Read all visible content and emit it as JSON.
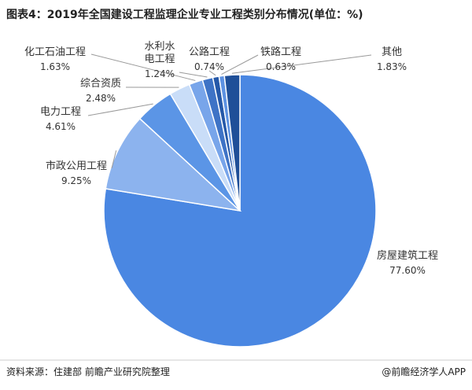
{
  "chart_data": {
    "type": "pie",
    "title": "图表4：2019年全国建设工程监理企业专业工程类别分布情况(单位：%)",
    "categories": [
      "房屋建筑工程",
      "市政公用工程",
      "电力工程",
      "综合资质",
      "化工石油工程",
      "水利水电工程",
      "公路工程",
      "铁路工程",
      "其他"
    ],
    "values": [
      77.6,
      9.25,
      4.61,
      2.48,
      1.63,
      1.24,
      0.74,
      0.63,
      1.83
    ],
    "value_labels": [
      "77.60%",
      "9.25%",
      "4.61%",
      "2.48%",
      "1.63%",
      "1.24%",
      "0.74%",
      "0.63%",
      "1.83%"
    ],
    "colors": [
      "#4a87e2",
      "#8cb3ee",
      "#5b95e6",
      "#c9ddf8",
      "#78a5ea",
      "#3e73c6",
      "#2558a8",
      "#5d92e2",
      "#1f4f98"
    ],
    "source": "资料来源：住建部 前瞻产业研究院整理",
    "credit": "@前瞻经济学人APP"
  }
}
